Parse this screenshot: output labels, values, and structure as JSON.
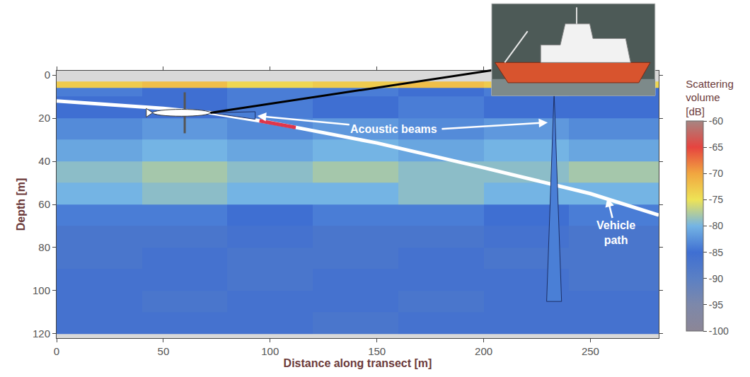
{
  "chart_data": {
    "type": "heatmap",
    "x_label": "Distance along transect [m]",
    "y_label": "Depth [m]",
    "xlim": [
      0,
      282
    ],
    "xticks": [
      0,
      50,
      100,
      150,
      200,
      250
    ],
    "ylim": [
      -2,
      122
    ],
    "yticks": [
      0,
      20,
      40,
      60,
      80,
      100,
      120
    ],
    "cells": {
      "x": [
        0,
        40,
        80,
        120,
        160,
        200,
        240,
        282
      ],
      "y": [
        3,
        6,
        10,
        20,
        30,
        40,
        50,
        60,
        70,
        80,
        90,
        100,
        110,
        120
      ],
      "z": [
        [
          -73,
          -72,
          -74,
          -73,
          -72,
          -73,
          -74
        ],
        [
          -84,
          -85,
          -84,
          -84,
          -85,
          -84,
          -85
        ],
        [
          -85,
          -85,
          -84,
          -85,
          -84,
          -85,
          -85
        ],
        [
          -83,
          -82,
          -83,
          -82,
          -83,
          -82,
          -83
        ],
        [
          -81,
          -80,
          -81,
          -80,
          -81,
          -80,
          -81
        ],
        [
          -79,
          -78,
          -79,
          -78,
          -79,
          -79,
          -78
        ],
        [
          -80,
          -79,
          -80,
          -80,
          -79,
          -80,
          -80
        ],
        [
          -84,
          -84,
          -85,
          -84,
          -84,
          -85,
          -84
        ],
        [
          -87,
          -87,
          -86,
          -87,
          -87,
          -86,
          -87
        ],
        [
          -87,
          -86,
          -87,
          -87,
          -86,
          -87,
          -87
        ],
        [
          -86,
          -86,
          -87,
          -86,
          -86,
          -86,
          -87
        ],
        [
          -86,
          -87,
          -86,
          -86,
          -87,
          -86,
          -86
        ],
        [
          -86,
          -86,
          -86,
          -87,
          -86,
          -86,
          -86
        ]
      ]
    },
    "colorbar": {
      "title": "Scattering volume [dB]",
      "range": [
        -100,
        -60
      ],
      "ticks": [
        -100,
        -95,
        -90,
        -85,
        -80,
        -75,
        -70,
        -65,
        -60
      ]
    },
    "series": [
      {
        "name": "Vehicle path",
        "type": "line",
        "color": "#ffffff",
        "x": [
          0,
          50,
          72,
          100,
          150,
          200,
          250,
          282
        ],
        "y": [
          12,
          15.5,
          17.5,
          22,
          31.5,
          43,
          55,
          65
        ]
      },
      {
        "type": "line",
        "color": "#e0364a",
        "x": [
          95,
          100,
          112
        ],
        "y": [
          21.2,
          22,
          24.3
        ]
      },
      {
        "name": "Acoustic beams",
        "type": "area",
        "color": "#4a7fd6",
        "x": [
          72,
          93,
          93,
          72
        ],
        "y": [
          17.5,
          17,
          20.5,
          17.5
        ]
      },
      {
        "type": "area",
        "color": "#4a7fd6",
        "x": [
          233,
          236.5,
          229.5,
          233
        ],
        "y": [
          8,
          105,
          105,
          8
        ]
      }
    ],
    "annotations": [
      {
        "text": "Acoustic beams",
        "x": 158,
        "y": 25,
        "arrows_to": [
          [
            94,
            19
          ],
          [
            230,
            22
          ]
        ]
      },
      {
        "text": "Vehicle path",
        "x": 262,
        "y": 73,
        "arrows_to": [
          [
            258,
            57
          ]
        ]
      }
    ],
    "vehicle": {
      "x": 59,
      "y": 17.5
    }
  }
}
